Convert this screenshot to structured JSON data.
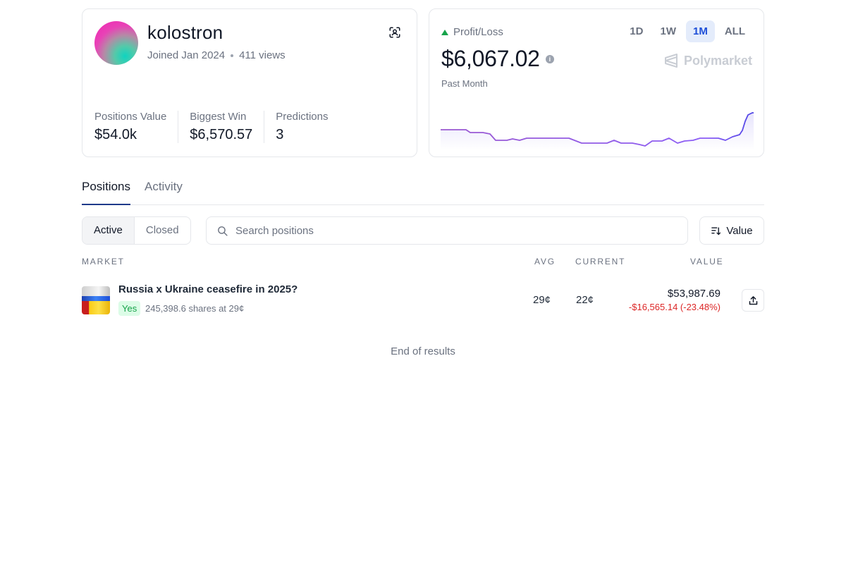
{
  "profile": {
    "username": "kolostron",
    "joined": "Joined Jan 2024",
    "views": "411 views",
    "stats": [
      {
        "label": "Positions Value",
        "value": "$54.0k"
      },
      {
        "label": "Biggest Win",
        "value": "$6,570.57"
      },
      {
        "label": "Predictions",
        "value": "3"
      }
    ]
  },
  "pnl": {
    "label": "Profit/Loss",
    "value": "$6,067.02",
    "period": "Past Month",
    "brand": "Polymarket",
    "ranges": [
      "1D",
      "1W",
      "1M",
      "ALL"
    ],
    "active_range": "1M",
    "colors": {
      "up": "#16a34a",
      "line": "#6d4aff"
    }
  },
  "tabs": {
    "positions": "Positions",
    "activity": "Activity"
  },
  "filters": {
    "active": "Active",
    "closed": "Closed",
    "search_placeholder": "Search positions",
    "sort_label": "Value"
  },
  "columns": {
    "market": "MARKET",
    "avg": "AVG",
    "current": "CURRENT",
    "value": "VALUE"
  },
  "positions": [
    {
      "title": "Russia x Ukraine ceasefire in 2025?",
      "outcome": "Yes",
      "shares": "245,398.6 shares at 29¢",
      "avg": "29¢",
      "current": "22¢",
      "value": "$53,987.69",
      "change": "-$16,565.14 (-23.48%)"
    }
  ],
  "end_text": "End of results"
}
